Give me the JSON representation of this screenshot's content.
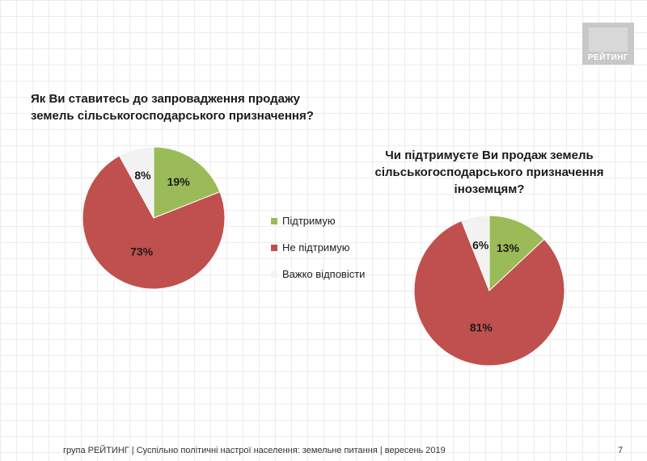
{
  "logo": {
    "text": "РЕЙТИНГ"
  },
  "chart_data": [
    {
      "type": "pie",
      "title": "Як Ви ставитесь до запровадження продажу земель сільськогосподарського призначення?",
      "categories": [
        "Підтримую",
        "Не підтримую",
        "Важко відповісти"
      ],
      "values": [
        19,
        73,
        8
      ],
      "labels": [
        "19%",
        "73%",
        "8%"
      ],
      "colors": [
        "#9bbb59",
        "#c0504d",
        "#f2f2f2"
      ],
      "label_colors": [
        "#1a1a1a",
        "#1a1a1a",
        "#1a1a1a"
      ]
    },
    {
      "type": "pie",
      "title": "Чи підтримуєте Ви продаж земель сільськогосподарського призначення іноземцям?",
      "categories": [
        "Підтримую",
        "Не підтримую",
        "Важко відповісти"
      ],
      "values": [
        13,
        81,
        6
      ],
      "labels": [
        "13%",
        "81%",
        "6%"
      ],
      "colors": [
        "#9bbb59",
        "#c0504d",
        "#f2f2f2"
      ],
      "label_colors": [
        "#1a1a1a",
        "#1a1a1a",
        "#1a1a1a"
      ]
    }
  ],
  "legend": [
    {
      "label": "Підтримую",
      "color": "#9bbb59"
    },
    {
      "label": "Не підтримую",
      "color": "#c0504d"
    },
    {
      "label": "Важко відповісти",
      "color": "#f2f2f2"
    }
  ],
  "footer": {
    "text": "група РЕЙТИНГ | Суспільно політичні настрої населення: земельне питання | вересень 2019",
    "page": "7"
  }
}
